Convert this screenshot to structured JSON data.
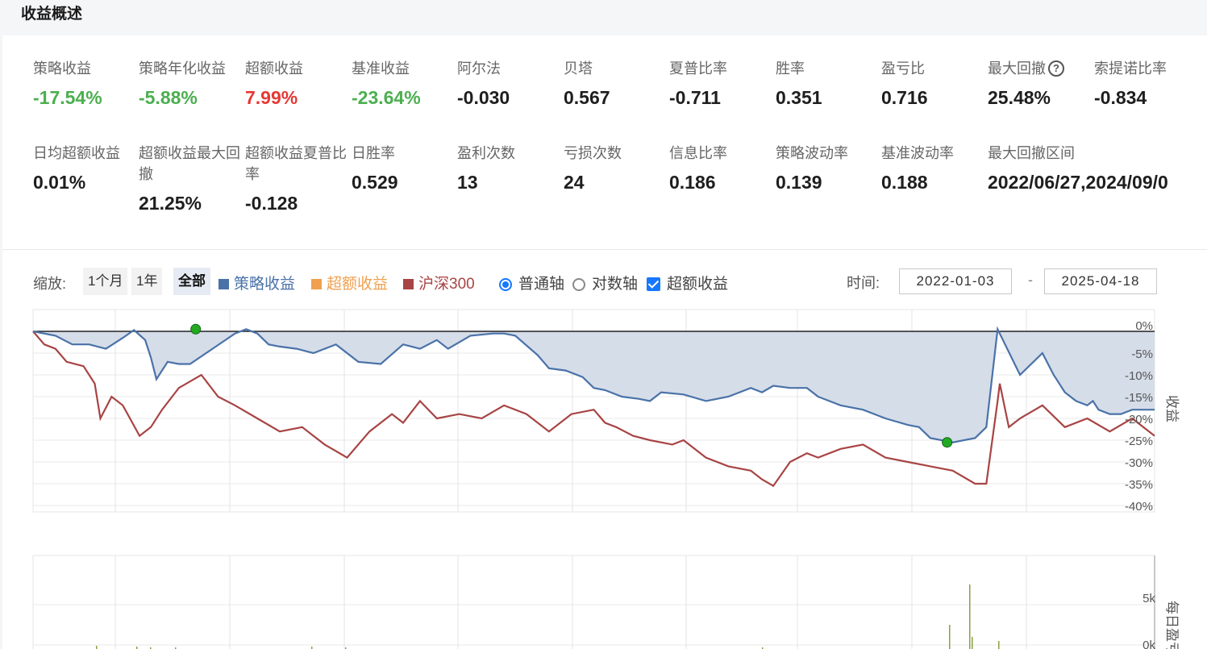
{
  "header": {
    "title": "收益概述"
  },
  "metrics_row1": [
    {
      "label": "策略收益",
      "value": "-17.54%",
      "tone": "green"
    },
    {
      "label": "策略年化收益",
      "value": "-5.88%",
      "tone": "green"
    },
    {
      "label": "超额收益",
      "value": "7.99%",
      "tone": "red"
    },
    {
      "label": "基准收益",
      "value": "-23.64%",
      "tone": "green"
    },
    {
      "label": "阿尔法",
      "value": "-0.030",
      "tone": "normal"
    },
    {
      "label": "贝塔",
      "value": "0.567",
      "tone": "normal"
    },
    {
      "label": "夏普比率",
      "value": "-0.711",
      "tone": "normal"
    },
    {
      "label": "胜率",
      "value": "0.351",
      "tone": "normal"
    },
    {
      "label": "盈亏比",
      "value": "0.716",
      "tone": "normal"
    },
    {
      "label": "最大回撤",
      "value": "25.48%",
      "tone": "normal",
      "help": "?"
    },
    {
      "label": "索提诺比率",
      "value": "-0.834",
      "tone": "normal"
    }
  ],
  "metrics_row2": [
    {
      "label": "日均超额收益",
      "value": "0.01%"
    },
    {
      "label": "超额收益最大回撤",
      "value": "21.25%"
    },
    {
      "label": "超额收益夏普比率",
      "value": "-0.128"
    },
    {
      "label": "日胜率",
      "value": "0.529"
    },
    {
      "label": "盈利次数",
      "value": "13"
    },
    {
      "label": "亏损次数",
      "value": "24"
    },
    {
      "label": "信息比率",
      "value": "0.186"
    },
    {
      "label": "策略波动率",
      "value": "0.139"
    },
    {
      "label": "基准波动率",
      "value": "0.188"
    },
    {
      "label": "最大回撤区间",
      "value": "2022/06/27,2024/09/0"
    }
  ],
  "toolbar": {
    "zoom_label": "缩放:",
    "zoom_buttons": [
      "1个月",
      "1年",
      "全部"
    ],
    "legend": [
      {
        "label": "策略收益",
        "color": "#4a72a8"
      },
      {
        "label": "超额收益",
        "color": "#f0a050"
      },
      {
        "label": "沪深300",
        "color": "#a84444"
      }
    ],
    "axis_normal": "普通轴",
    "axis_log": "对数轴",
    "excess_toggle": "超额收益",
    "time_label": "时间:",
    "date_separator": "-",
    "start_date": "2022-01-03",
    "end_date": "2025-04-18"
  },
  "chart_data": [
    {
      "type": "line",
      "ylabel": "收益",
      "y_ticks": [
        "0%",
        "-5%",
        "-10%",
        "-15%",
        "-20%",
        "-25%",
        "-30%",
        "-35%",
        "-40%"
      ],
      "ylim": [
        -40,
        0
      ],
      "x_range": [
        "2022-01-03",
        "2025-04-18"
      ],
      "series": [
        {
          "name": "策略收益",
          "color": "#4a72a8",
          "area_fill": "#d5dde9",
          "x": [
            0,
            0.02,
            0.035,
            0.05,
            0.065,
            0.08,
            0.09,
            0.1,
            0.105,
            0.11,
            0.12,
            0.13,
            0.14,
            0.16,
            0.18,
            0.19,
            0.2,
            0.21,
            0.22,
            0.235,
            0.25,
            0.27,
            0.29,
            0.31,
            0.33,
            0.345,
            0.36,
            0.37,
            0.39,
            0.41,
            0.42,
            0.43,
            0.45,
            0.46,
            0.475,
            0.49,
            0.5,
            0.51,
            0.525,
            0.54,
            0.55,
            0.56,
            0.58,
            0.6,
            0.62,
            0.64,
            0.65,
            0.66,
            0.675,
            0.69,
            0.7,
            0.72,
            0.74,
            0.76,
            0.78,
            0.79,
            0.8,
            0.82,
            0.84,
            0.85,
            0.86,
            0.88,
            0.9,
            0.91,
            0.915,
            0.92,
            0.93,
            0.94,
            0.945,
            0.95,
            0.96,
            0.97,
            0.98,
            0.99,
            1.0
          ],
          "y": [
            0,
            -1,
            -3,
            -3,
            -4,
            -1.5,
            0.3,
            -2,
            -6,
            -11,
            -7,
            -7.5,
            -7.5,
            -4,
            -0.5,
            0.5,
            -0.5,
            -3,
            -3.5,
            -4,
            -5,
            -3,
            -7,
            -7.5,
            -3,
            -4,
            -2,
            -4,
            -1,
            -0.5,
            -0.5,
            -1,
            -5.5,
            -8.5,
            -9,
            -10.5,
            -13,
            -13.5,
            -15,
            -15.5,
            -16,
            -14,
            -14.5,
            -16,
            -15,
            -13,
            -14,
            -12.5,
            -13,
            -13,
            -15,
            -17,
            -18,
            -20,
            -21.5,
            -22,
            -24.5,
            -25.5,
            -24.5,
            -22,
            0.5,
            -10,
            -5,
            -10,
            -12,
            -14,
            -16,
            -17,
            -16,
            -18,
            -19,
            -19,
            -18,
            -18,
            -18
          ]
        },
        {
          "name": "沪深300",
          "color": "#a84444",
          "x": [
            0,
            0.01,
            0.02,
            0.03,
            0.045,
            0.055,
            0.06,
            0.07,
            0.08,
            0.095,
            0.105,
            0.115,
            0.13,
            0.15,
            0.165,
            0.18,
            0.2,
            0.22,
            0.24,
            0.26,
            0.28,
            0.3,
            0.32,
            0.33,
            0.345,
            0.36,
            0.38,
            0.4,
            0.42,
            0.44,
            0.46,
            0.48,
            0.5,
            0.51,
            0.52,
            0.535,
            0.55,
            0.57,
            0.58,
            0.6,
            0.62,
            0.64,
            0.65,
            0.66,
            0.675,
            0.69,
            0.7,
            0.72,
            0.74,
            0.76,
            0.78,
            0.8,
            0.82,
            0.84,
            0.85,
            0.86,
            0.862,
            0.87,
            0.88,
            0.9,
            0.92,
            0.94,
            0.96,
            0.98,
            1.0
          ],
          "y": [
            0,
            -3,
            -4,
            -7,
            -8,
            -12,
            -20,
            -15,
            -17,
            -24,
            -22,
            -18,
            -13,
            -10,
            -15,
            -17,
            -20,
            -23,
            -22,
            -26,
            -29,
            -23,
            -19,
            -21,
            -16,
            -20,
            -19,
            -20,
            -17,
            -19,
            -23,
            -19,
            -18,
            -21,
            -22,
            -24,
            -25,
            -26,
            -25,
            -29,
            -31,
            -32,
            -34,
            -35.5,
            -30,
            -28,
            -29,
            -27,
            -26,
            -29,
            -30,
            -31,
            -32,
            -35,
            -35,
            -16,
            -12,
            -22,
            -20,
            -17,
            -22,
            -20,
            -23,
            -20,
            -24
          ]
        }
      ],
      "markers": [
        {
          "x": 0.145,
          "y": 0.5,
          "color": "#22aa22"
        },
        {
          "x": 0.815,
          "y": -25.5,
          "color": "#22aa22"
        }
      ]
    },
    {
      "type": "bar",
      "ylabel": "每日盈亏",
      "y_ticks": [
        "5k",
        "0k"
      ]
    }
  ]
}
